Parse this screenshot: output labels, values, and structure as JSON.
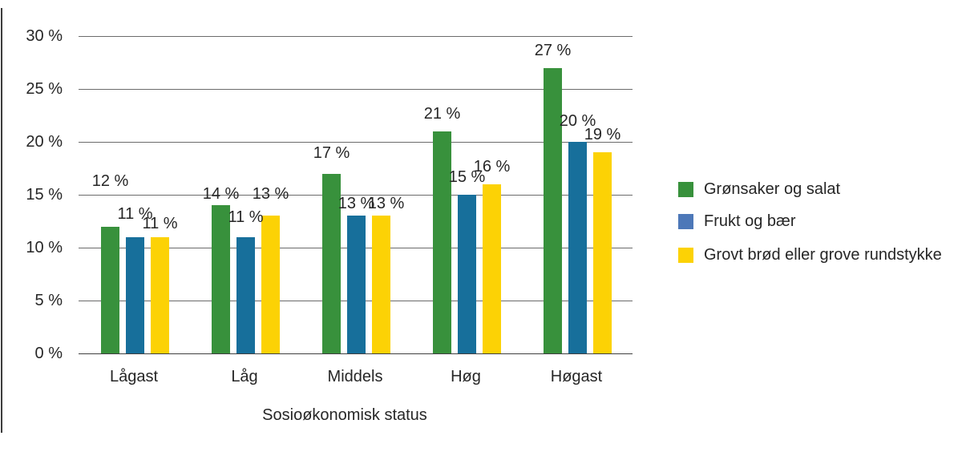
{
  "chart_data": {
    "type": "bar",
    "title": "",
    "xlabel": "Sosioøkonomisk status",
    "ylabel": "",
    "categories": [
      "Lågast",
      "Låg",
      "Middels",
      "Høg",
      "Høgast"
    ],
    "series": [
      {
        "name": "Grønsaker og salat",
        "color": "#38913c",
        "legend_color": "#38913c",
        "values": [
          12,
          14,
          17,
          21,
          27
        ]
      },
      {
        "name": "Frukt og bær",
        "color": "#176f9b",
        "legend_color": "#4d78b8",
        "values": [
          11,
          11,
          13,
          15,
          20
        ]
      },
      {
        "name": "Grovt brød eller grove rundstykke",
        "color": "#fcd205",
        "legend_color": "#fcd205",
        "values": [
          11,
          13,
          13,
          16,
          19
        ]
      }
    ],
    "data_label_suffix": " %",
    "y_ticks": [
      {
        "label": "30 %",
        "value": 30
      },
      {
        "label": "25 %",
        "value": 25
      },
      {
        "label": "20 %",
        "value": 20
      },
      {
        "label": "15 %",
        "value": 15
      },
      {
        "label": "10 %",
        "value": 10
      },
      {
        "label": "5 %",
        "value": 5
      },
      {
        "label": "0 %",
        "value": 0
      }
    ],
    "ylim": [
      0,
      30
    ],
    "grid": "horizontal",
    "legend_position": "right",
    "layout_hints": {
      "label_dy": [
        [
          -35,
          -7,
          5
        ],
        [
          8,
          -3,
          -5
        ],
        [
          -4,
          7,
          7
        ],
        [
          0,
          0,
          0
        ],
        [
          0,
          -4,
          0
        ]
      ],
      "label_dx": [
        [
          0,
          0,
          0
        ],
        [
          0,
          0,
          0
        ],
        [
          0,
          0,
          6
        ],
        [
          0,
          0,
          0
        ],
        [
          0,
          0,
          0
        ]
      ]
    }
  },
  "colors": {
    "background": "#ffffff",
    "grid_line": "#6b6b6b",
    "axis_line": "#3f3f3f",
    "text": "#262626",
    "left_rule": "#3b3b3b"
  }
}
